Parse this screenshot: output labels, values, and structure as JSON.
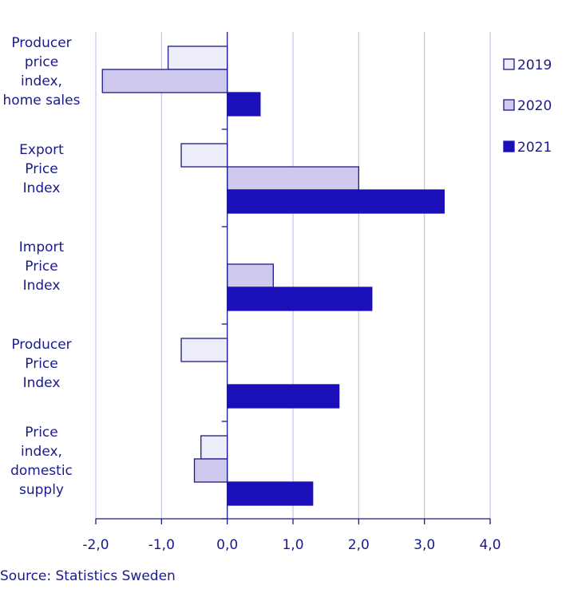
{
  "chart_data": {
    "type": "bar",
    "orientation": "horizontal",
    "categories": [
      [
        "Producer",
        "price",
        "index,",
        "home sales"
      ],
      [
        "Export",
        "Price",
        "Index"
      ],
      [
        "Import",
        "Price",
        "Index"
      ],
      [
        "Producer",
        "Price",
        "Index"
      ],
      [
        "Price",
        "index,",
        "domestic",
        "supply"
      ]
    ],
    "series": [
      {
        "name": "2019",
        "values": [
          -0.9,
          -0.7,
          0.0,
          -0.7,
          -0.4
        ],
        "color": "#ededf9",
        "stroke": "#1a1a8c"
      },
      {
        "name": "2020",
        "values": [
          -1.9,
          2.0,
          0.7,
          0.0,
          -0.5
        ],
        "color": "#cfc9ee",
        "stroke": "#1a1a8c"
      },
      {
        "name": "2021",
        "values": [
          0.5,
          3.3,
          2.2,
          1.7,
          1.3
        ],
        "color": "#1a0fb8",
        "stroke": "#1a0fb8"
      }
    ],
    "xlim": [
      -2.0,
      4.0
    ],
    "xticks": [
      "-2,0",
      "-1,0",
      "0,0",
      "1,0",
      "2,0",
      "3,0",
      "4,0"
    ],
    "grid": true,
    "legend_position": "right",
    "source": "Source: Statistics Sweden"
  }
}
